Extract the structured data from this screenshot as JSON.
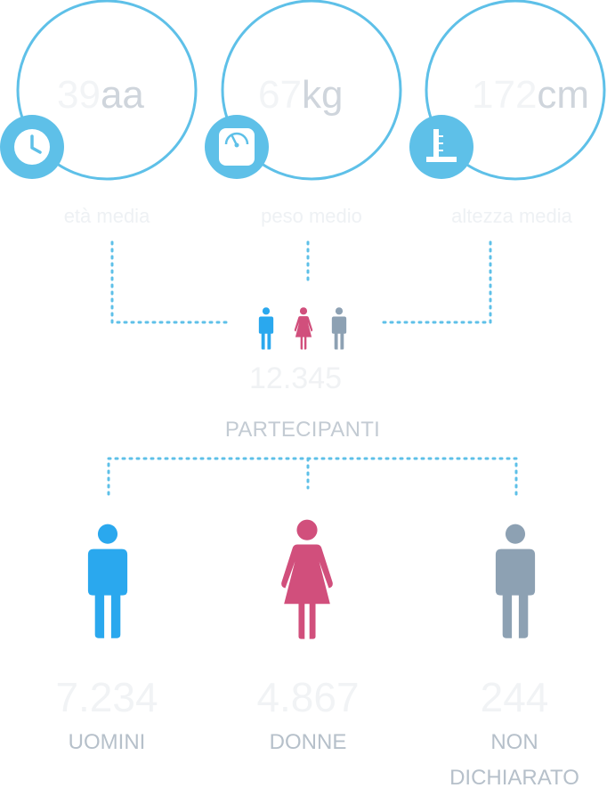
{
  "metrics": [
    {
      "icon": "clock-icon",
      "value": "39",
      "unit": "aa",
      "label": "età media"
    },
    {
      "icon": "scale-icon",
      "value": "67",
      "unit": "kg",
      "label": "peso medio"
    },
    {
      "icon": "height-icon",
      "value": "172",
      "unit": "cm",
      "label": "altezza media"
    }
  ],
  "participants": {
    "total": "12.345",
    "label": "PARTECIPANTI"
  },
  "groups": [
    {
      "count": "7.234",
      "label": "UOMINI",
      "color": "#2aa8ee"
    },
    {
      "count": "4.867",
      "label": "DONNE",
      "color": "#d14f7c"
    },
    {
      "count": "244",
      "label": "NON DICHIARATO",
      "color": "#8da1b3"
    }
  ],
  "colors": {
    "accent": "#5ec0e8",
    "men": "#2aa8ee",
    "women": "#d14f7c",
    "undeclared": "#8da1b3"
  }
}
